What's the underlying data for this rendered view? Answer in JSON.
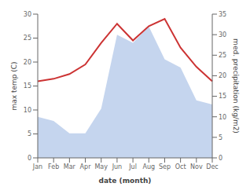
{
  "chart_data": {
    "type": "line",
    "xlabel": "date (month)",
    "ylabel": "max temp (C)",
    "y2label": "med. precipitation (kg/m2)",
    "categories": [
      "Jan",
      "Feb",
      "Mar",
      "Apr",
      "May",
      "Jun",
      "Jul",
      "Aug",
      "Sep",
      "Oct",
      "Nov",
      "Dec"
    ],
    "series": [
      {
        "type": "area",
        "axis": "y2",
        "color": "#c5d5ee",
        "values": [
          10,
          9,
          6,
          6,
          12,
          30,
          28,
          32,
          24,
          22,
          14,
          13
        ]
      },
      {
        "type": "line",
        "color": "#cc3333",
        "values": [
          16,
          16.5,
          17.5,
          19.5,
          24,
          28,
          24.5,
          27.5,
          29,
          23,
          19,
          16
        ]
      }
    ],
    "ylim": [
      0,
      30
    ],
    "yticks": [
      0,
      5,
      10,
      15,
      20,
      25,
      30
    ],
    "y2lim": [
      0,
      35
    ],
    "y2ticks": [
      0,
      5,
      10,
      15,
      20,
      25,
      30,
      35
    ],
    "grid": false
  }
}
